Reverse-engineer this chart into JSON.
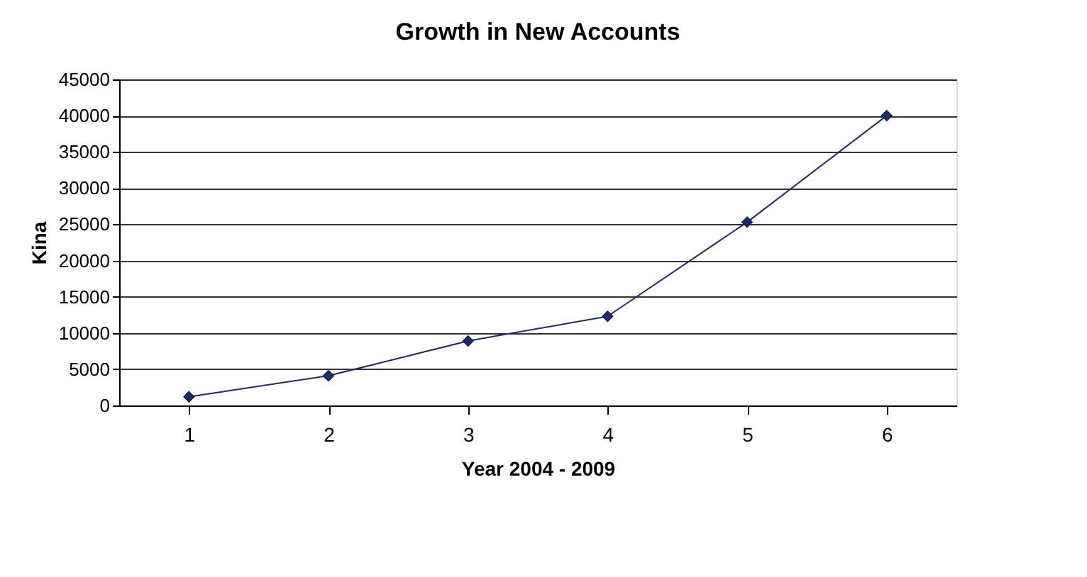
{
  "chart_data": {
    "type": "line",
    "title": "Growth in New Accounts",
    "xlabel": "Year 2004 - 2009",
    "ylabel": "Kina",
    "categories": [
      "1",
      "2",
      "3",
      "4",
      "5",
      "6"
    ],
    "series": [
      {
        "color": "#1f2a6e",
        "values": [
          1200,
          4100,
          8900,
          12300,
          25300,
          40000
        ]
      }
    ],
    "ylim": [
      0,
      45000
    ],
    "yticks": [
      0,
      5000,
      10000,
      15000,
      20000,
      25000,
      30000,
      35000,
      40000,
      45000
    ],
    "grid": "y",
    "marker": "diamond",
    "line_style": "solid"
  }
}
